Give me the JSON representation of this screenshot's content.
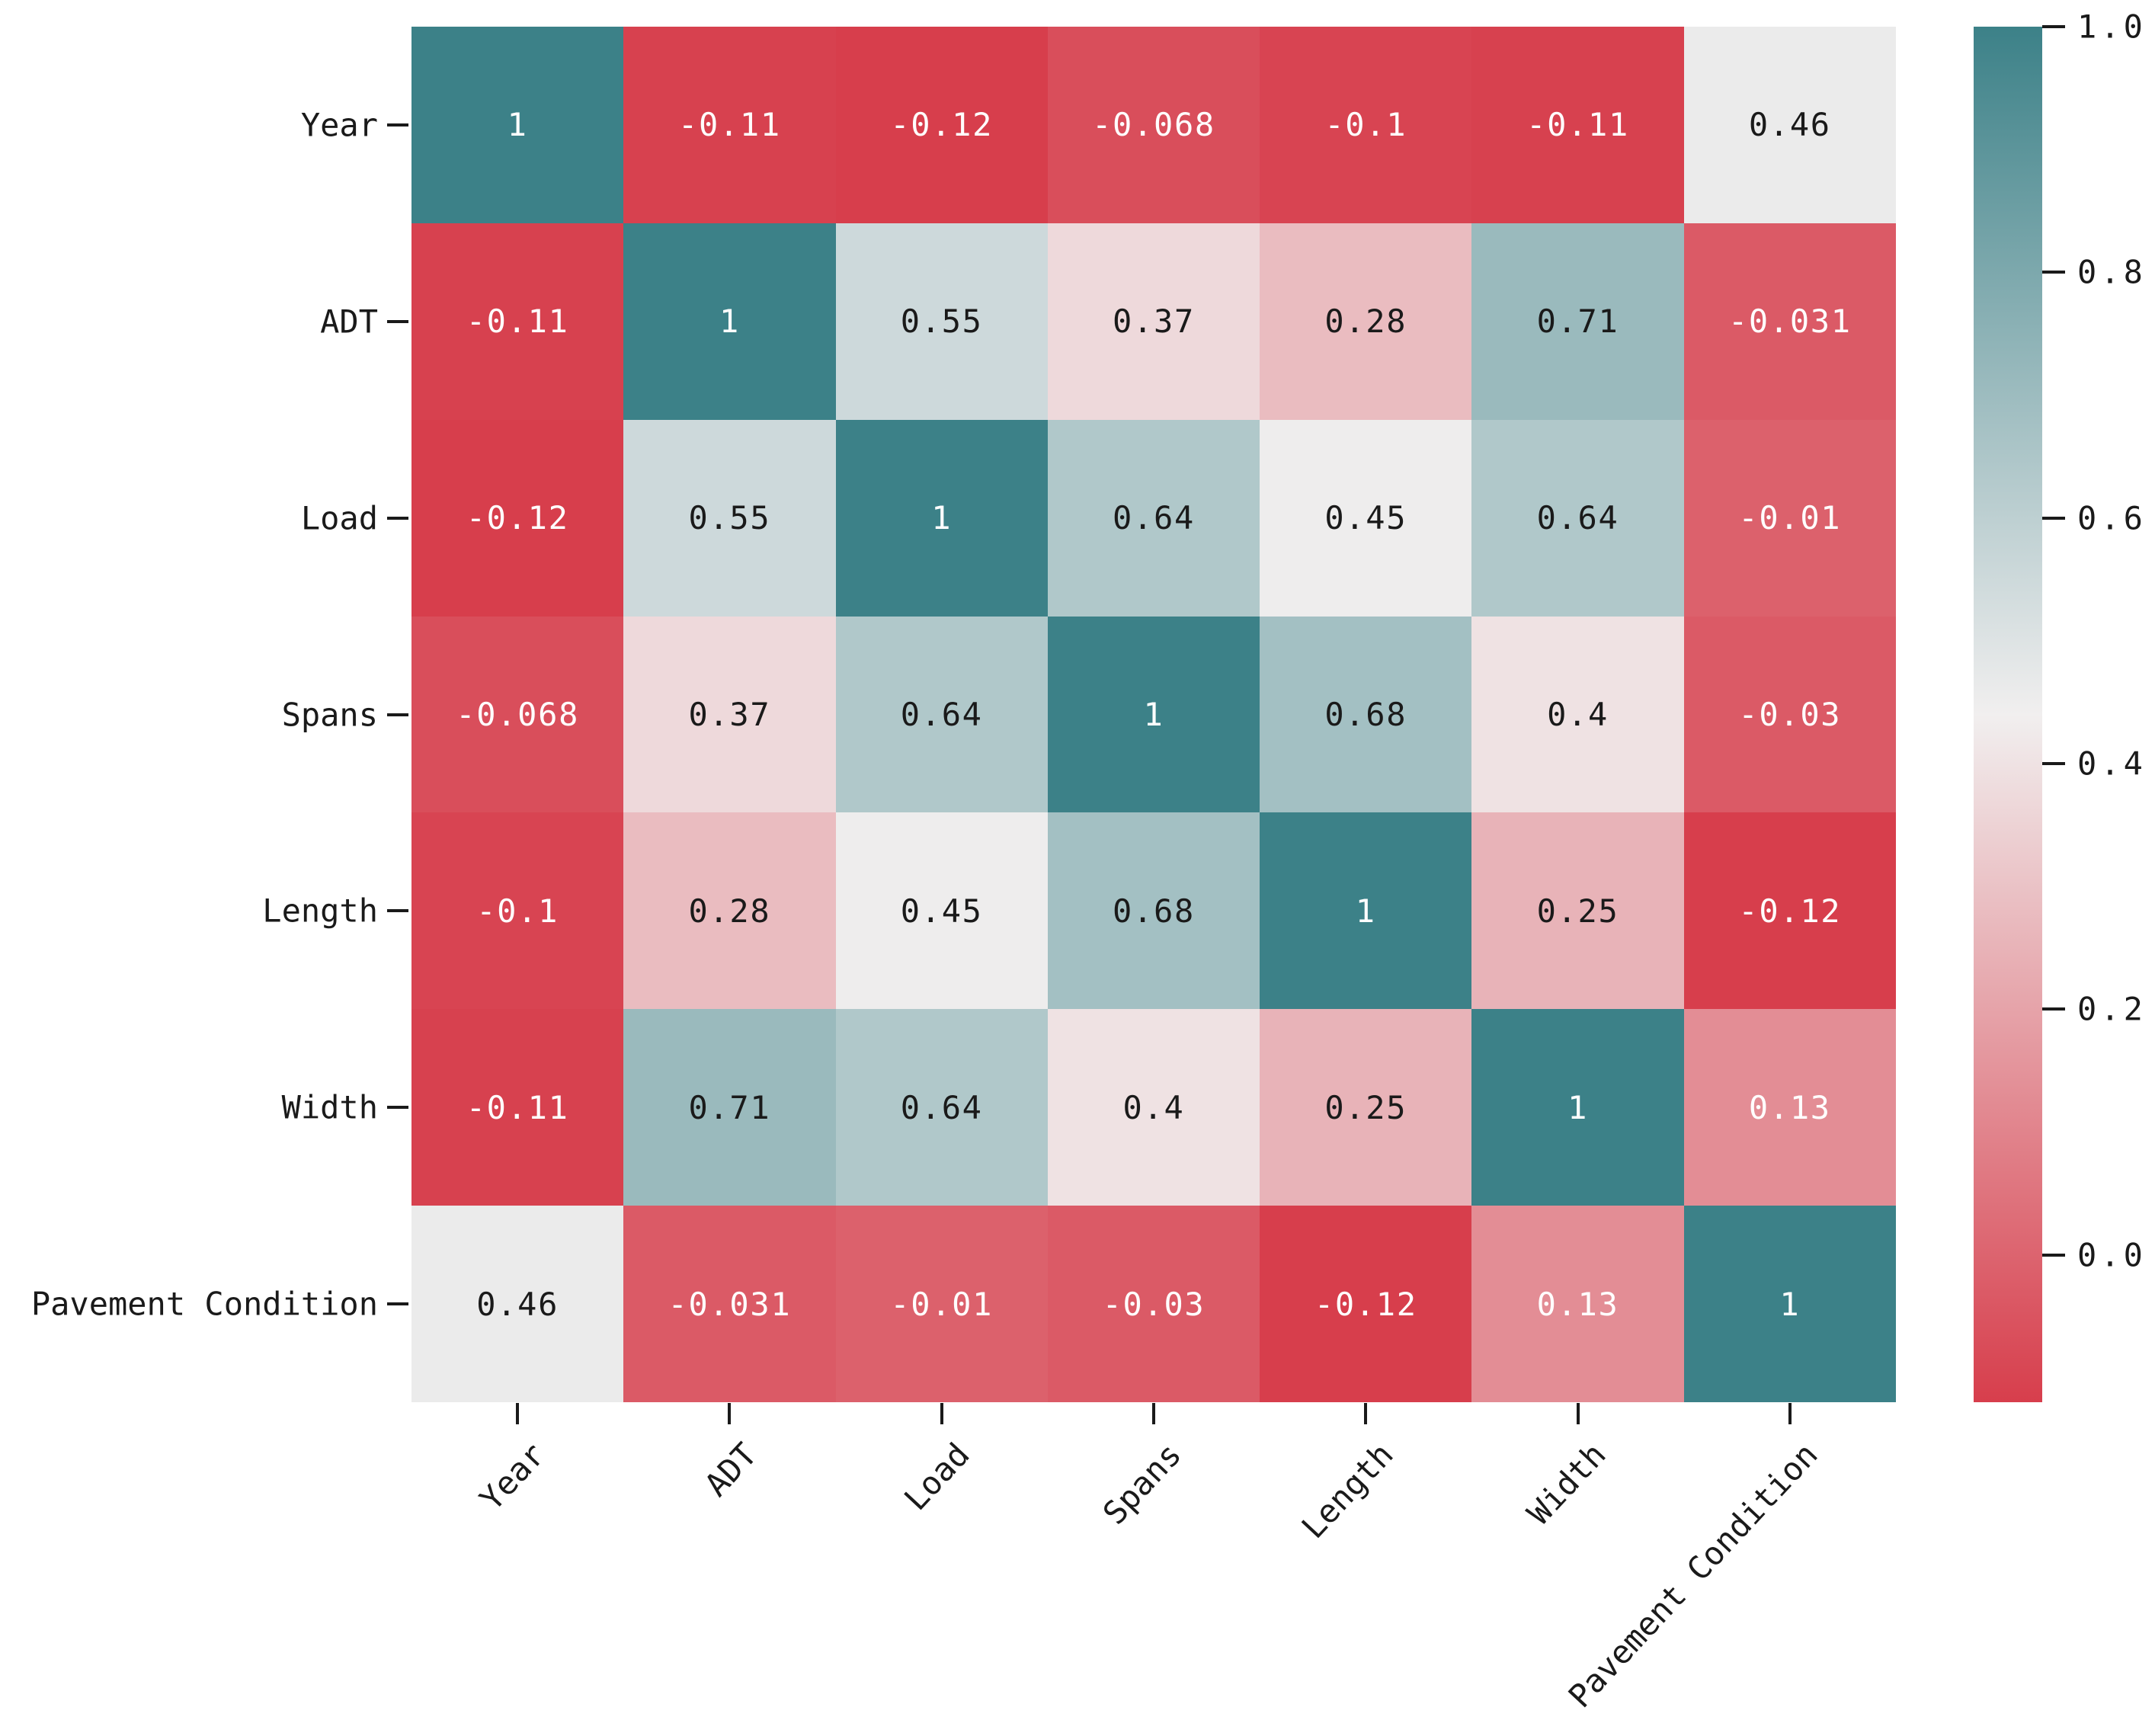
{
  "figure": {
    "background": "#ffffff",
    "text_color": "#1a1a1a"
  },
  "chart_data": {
    "type": "heatmap",
    "title": "",
    "categories": [
      "Year",
      "ADT",
      "Load",
      "Spans",
      "Length",
      "Width",
      "Pavement Condition"
    ],
    "matrix": [
      [
        1,
        -0.11,
        -0.12,
        -0.068,
        -0.1,
        -0.11,
        0.46
      ],
      [
        -0.11,
        1,
        0.55,
        0.37,
        0.28,
        0.71,
        -0.031
      ],
      [
        -0.12,
        0.55,
        1,
        0.64,
        0.45,
        0.64,
        -0.01
      ],
      [
        -0.068,
        0.37,
        0.64,
        1,
        0.68,
        0.4,
        -0.03
      ],
      [
        -0.1,
        0.28,
        0.45,
        0.68,
        1,
        0.25,
        -0.12
      ],
      [
        -0.11,
        0.71,
        0.64,
        0.4,
        0.25,
        1,
        0.13
      ],
      [
        0.46,
        -0.031,
        -0.01,
        -0.03,
        -0.12,
        0.13,
        1
      ]
    ],
    "annotations": [
      [
        "1",
        "-0.11",
        "-0.12",
        "-0.068",
        "-0.1",
        "-0.11",
        "0.46"
      ],
      [
        "-0.11",
        "1",
        "0.55",
        "0.37",
        "0.28",
        "0.71",
        "-0.031"
      ],
      [
        "-0.12",
        "0.55",
        "1",
        "0.64",
        "0.45",
        "0.64",
        "-0.01"
      ],
      [
        "-0.068",
        "0.37",
        "0.64",
        "1",
        "0.68",
        "0.4",
        "-0.03"
      ],
      [
        "-0.1",
        "0.28",
        "0.45",
        "0.68",
        "1",
        "0.25",
        "-0.12"
      ],
      [
        "-0.11",
        "0.71",
        "0.64",
        "0.4",
        "0.25",
        "1",
        "0.13"
      ],
      [
        "0.46",
        "-0.031",
        "-0.01",
        "-0.03",
        "-0.12",
        "0.13",
        "1"
      ]
    ],
    "colorbar": {
      "ticks": [
        "1.0",
        "0.8",
        "0.6",
        "0.4",
        "0.2",
        "0.0"
      ],
      "tick_values": [
        1.0,
        0.8,
        0.6,
        0.4,
        0.2,
        0.0
      ],
      "vmin": -0.12,
      "vmax": 1.0,
      "position": "right"
    },
    "colors": {
      "negative_end": "#d73e4c",
      "center": "#f1efef",
      "positive_end": "#3c8188",
      "annotation_dark": "#1a1a1a",
      "annotation_light": "#ffffff"
    },
    "layout": {
      "grid": false,
      "x_tick_rotation_deg": 47,
      "legend": "none"
    }
  }
}
